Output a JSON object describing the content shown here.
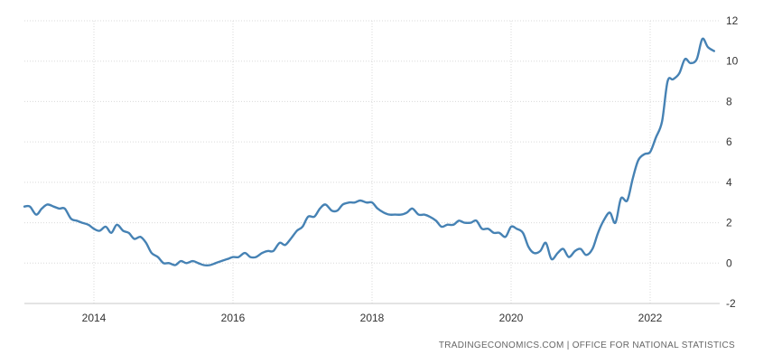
{
  "chart_data": {
    "type": "line",
    "title": "",
    "xlabel": "",
    "ylabel": "",
    "xlim": [
      2013.0,
      2023.0
    ],
    "ylim": [
      -2,
      12
    ],
    "x_ticks": [
      2014,
      2016,
      2018,
      2020,
      2022
    ],
    "y_ticks": [
      -2,
      0,
      2,
      4,
      6,
      8,
      10,
      12
    ],
    "grid": true,
    "legend": "none",
    "series": [
      {
        "color": "#4682b4",
        "points": [
          [
            2013.0,
            2.8
          ],
          [
            2013.08,
            2.8
          ],
          [
            2013.17,
            2.4
          ],
          [
            2013.25,
            2.7
          ],
          [
            2013.33,
            2.9
          ],
          [
            2013.42,
            2.8
          ],
          [
            2013.5,
            2.7
          ],
          [
            2013.58,
            2.7
          ],
          [
            2013.67,
            2.2
          ],
          [
            2013.75,
            2.1
          ],
          [
            2013.83,
            2.0
          ],
          [
            2013.92,
            1.9
          ],
          [
            2014.0,
            1.7
          ],
          [
            2014.08,
            1.6
          ],
          [
            2014.17,
            1.8
          ],
          [
            2014.25,
            1.5
          ],
          [
            2014.33,
            1.9
          ],
          [
            2014.42,
            1.6
          ],
          [
            2014.5,
            1.5
          ],
          [
            2014.58,
            1.2
          ],
          [
            2014.67,
            1.3
          ],
          [
            2014.75,
            1.0
          ],
          [
            2014.83,
            0.5
          ],
          [
            2014.92,
            0.3
          ],
          [
            2015.0,
            0.0
          ],
          [
            2015.08,
            0.0
          ],
          [
            2015.17,
            -0.1
          ],
          [
            2015.25,
            0.1
          ],
          [
            2015.33,
            0.0
          ],
          [
            2015.42,
            0.1
          ],
          [
            2015.5,
            0.0
          ],
          [
            2015.58,
            -0.1
          ],
          [
            2015.67,
            -0.1
          ],
          [
            2015.75,
            0.0
          ],
          [
            2015.83,
            0.1
          ],
          [
            2015.92,
            0.2
          ],
          [
            2016.0,
            0.3
          ],
          [
            2016.08,
            0.3
          ],
          [
            2016.17,
            0.5
          ],
          [
            2016.25,
            0.3
          ],
          [
            2016.33,
            0.3
          ],
          [
            2016.42,
            0.5
          ],
          [
            2016.5,
            0.6
          ],
          [
            2016.58,
            0.6
          ],
          [
            2016.67,
            1.0
          ],
          [
            2016.75,
            0.9
          ],
          [
            2016.83,
            1.2
          ],
          [
            2016.92,
            1.6
          ],
          [
            2017.0,
            1.8
          ],
          [
            2017.08,
            2.3
          ],
          [
            2017.17,
            2.3
          ],
          [
            2017.25,
            2.7
          ],
          [
            2017.33,
            2.9
          ],
          [
            2017.42,
            2.6
          ],
          [
            2017.5,
            2.6
          ],
          [
            2017.58,
            2.9
          ],
          [
            2017.67,
            3.0
          ],
          [
            2017.75,
            3.0
          ],
          [
            2017.83,
            3.1
          ],
          [
            2017.92,
            3.0
          ],
          [
            2018.0,
            3.0
          ],
          [
            2018.08,
            2.7
          ],
          [
            2018.17,
            2.5
          ],
          [
            2018.25,
            2.4
          ],
          [
            2018.33,
            2.4
          ],
          [
            2018.42,
            2.4
          ],
          [
            2018.5,
            2.5
          ],
          [
            2018.58,
            2.7
          ],
          [
            2018.67,
            2.4
          ],
          [
            2018.75,
            2.4
          ],
          [
            2018.83,
            2.3
          ],
          [
            2018.92,
            2.1
          ],
          [
            2019.0,
            1.8
          ],
          [
            2019.08,
            1.9
          ],
          [
            2019.17,
            1.9
          ],
          [
            2019.25,
            2.1
          ],
          [
            2019.33,
            2.0
          ],
          [
            2019.42,
            2.0
          ],
          [
            2019.5,
            2.1
          ],
          [
            2019.58,
            1.7
          ],
          [
            2019.67,
            1.7
          ],
          [
            2019.75,
            1.5
          ],
          [
            2019.83,
            1.5
          ],
          [
            2019.92,
            1.3
          ],
          [
            2020.0,
            1.8
          ],
          [
            2020.08,
            1.7
          ],
          [
            2020.17,
            1.5
          ],
          [
            2020.25,
            0.8
          ],
          [
            2020.33,
            0.5
          ],
          [
            2020.42,
            0.6
          ],
          [
            2020.5,
            1.0
          ],
          [
            2020.58,
            0.2
          ],
          [
            2020.67,
            0.5
          ],
          [
            2020.75,
            0.7
          ],
          [
            2020.83,
            0.3
          ],
          [
            2020.92,
            0.6
          ],
          [
            2021.0,
            0.7
          ],
          [
            2021.08,
            0.4
          ],
          [
            2021.17,
            0.7
          ],
          [
            2021.25,
            1.5
          ],
          [
            2021.33,
            2.1
          ],
          [
            2021.42,
            2.5
          ],
          [
            2021.5,
            2.0
          ],
          [
            2021.58,
            3.2
          ],
          [
            2021.67,
            3.1
          ],
          [
            2021.75,
            4.2
          ],
          [
            2021.83,
            5.1
          ],
          [
            2021.92,
            5.4
          ],
          [
            2022.0,
            5.5
          ],
          [
            2022.08,
            6.2
          ],
          [
            2022.17,
            7.0
          ],
          [
            2022.25,
            9.0
          ],
          [
            2022.33,
            9.1
          ],
          [
            2022.42,
            9.4
          ],
          [
            2022.5,
            10.1
          ],
          [
            2022.58,
            9.9
          ],
          [
            2022.67,
            10.1
          ],
          [
            2022.75,
            11.1
          ],
          [
            2022.83,
            10.7
          ],
          [
            2022.92,
            10.5
          ]
        ]
      }
    ]
  },
  "footer": {
    "source": "TRADINGECONOMICS.COM  |  OFFICE FOR NATIONAL STATISTICS"
  }
}
